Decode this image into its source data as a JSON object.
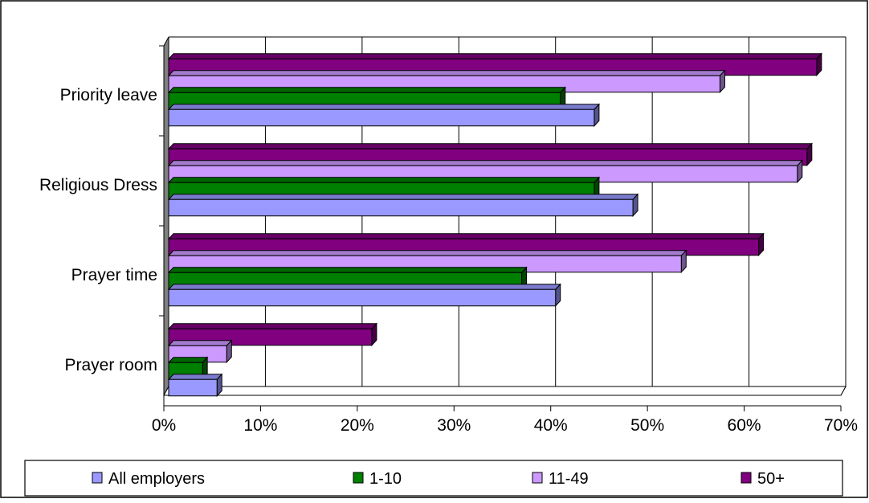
{
  "chart_data": {
    "type": "bar",
    "orientation": "horizontal",
    "style": "3d",
    "categories": [
      "Priority leave",
      "Religious Dress",
      "Prayer time",
      "Prayer room"
    ],
    "series": [
      {
        "name": "All employers",
        "values": [
          44,
          48,
          40,
          5
        ],
        "color": "#9999ff"
      },
      {
        "name": "1-10",
        "values": [
          40.5,
          44,
          36.5,
          3.5
        ],
        "color": "#008000"
      },
      {
        "name": "11-49",
        "values": [
          57,
          65,
          53,
          6
        ],
        "color": "#cc99ff"
      },
      {
        "name": "50+",
        "values": [
          67,
          66,
          61,
          21
        ],
        "color": "#800080"
      }
    ],
    "x_ticks": [
      "0%",
      "10%",
      "20%",
      "30%",
      "40%",
      "50%",
      "60%",
      "70%"
    ],
    "xlim": [
      0,
      70
    ],
    "grid": true,
    "legend_position": "bottom"
  }
}
